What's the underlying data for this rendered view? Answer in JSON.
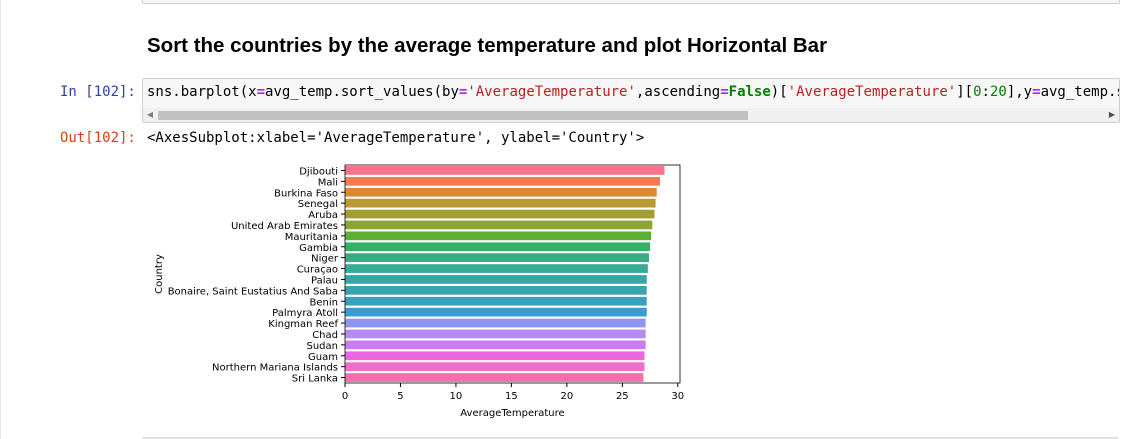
{
  "heading": "Sort the countries by the average temperature and plot Horizontal Bar",
  "input_prompt": "In [102]:",
  "output_prompt": "Out[102]:",
  "code_tokens": [
    {
      "t": "sns.barplot(x",
      "c": ""
    },
    {
      "t": "=",
      "c": "op"
    },
    {
      "t": "avg_temp.sort_values(by",
      "c": ""
    },
    {
      "t": "=",
      "c": "op"
    },
    {
      "t": "'AverageTemperature'",
      "c": "str"
    },
    {
      "t": ",ascending",
      "c": ""
    },
    {
      "t": "=",
      "c": "op"
    },
    {
      "t": "False",
      "c": "kw"
    },
    {
      "t": ")[",
      "c": ""
    },
    {
      "t": "'AverageTemperature'",
      "c": "str"
    },
    {
      "t": "][",
      "c": ""
    },
    {
      "t": "0",
      "c": "num"
    },
    {
      "t": ":",
      "c": ""
    },
    {
      "t": "20",
      "c": "num"
    },
    {
      "t": "],y",
      "c": ""
    },
    {
      "t": "=",
      "c": "op"
    },
    {
      "t": "avg_temp.s",
      "c": ""
    }
  ],
  "output_text": "<AxesSubplot:xlabel='AverageTemperature', ylabel='Country'>",
  "chart_data": {
    "type": "bar",
    "orientation": "horizontal",
    "xlabel": "AverageTemperature",
    "ylabel": "Country",
    "xlim": [
      0,
      30.2
    ],
    "xticks": [
      0,
      5,
      10,
      15,
      20,
      25,
      30
    ],
    "categories": [
      "Djibouti",
      "Mali",
      "Burkina Faso",
      "Senegal",
      "Aruba",
      "United Arab Emirates",
      "Mauritania",
      "Gambia",
      "Niger",
      "Curaçao",
      "Palau",
      "Bonaire, Saint Eustatius And Saba",
      "Benin",
      "Palmyra Atoll",
      "Kingman Reef",
      "Chad",
      "Sudan",
      "Guam",
      "Northern Mariana Islands",
      "Sri Lanka"
    ],
    "values": [
      28.8,
      28.4,
      28.1,
      28.0,
      27.9,
      27.7,
      27.6,
      27.5,
      27.4,
      27.3,
      27.2,
      27.2,
      27.2,
      27.2,
      27.1,
      27.1,
      27.1,
      27.0,
      27.0,
      26.9
    ],
    "colors": [
      "#f77189",
      "#f57a4e",
      "#dc8932",
      "#bb9832",
      "#a29f32",
      "#8ba432",
      "#5caf32",
      "#32b165",
      "#34ad82",
      "#35aa95",
      "#36a7a4",
      "#37a5b0",
      "#38a2bd",
      "#3a9dcf",
      "#8f94f4",
      "#b48bf4",
      "#cc7af4",
      "#ec65e5",
      "#f56bcb",
      "#f66fac"
    ]
  }
}
